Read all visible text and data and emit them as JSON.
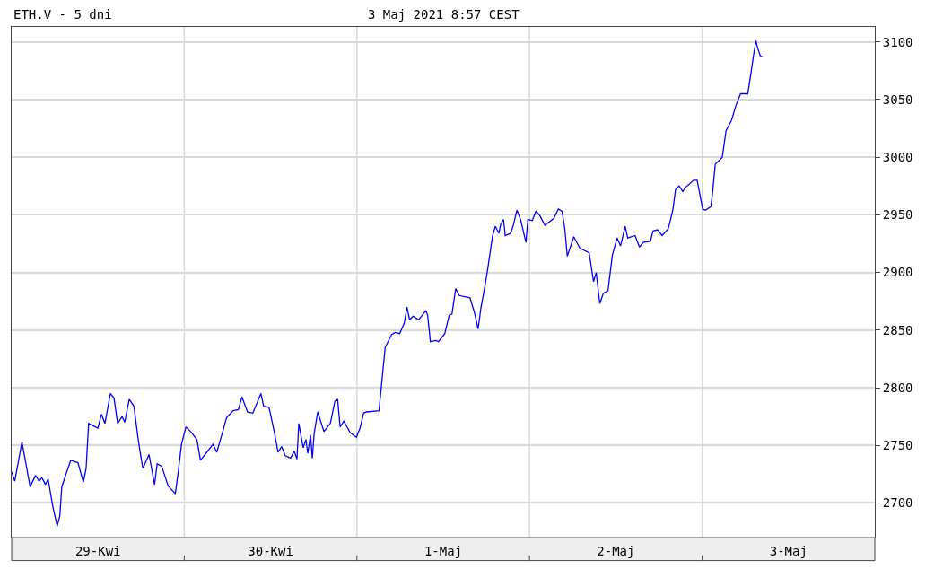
{
  "chart_data": {
    "type": "line",
    "title": "ETH.V - 5 dni",
    "subtitle": "3 Maj 2021 8:57 CEST",
    "x": [
      "2021-04-29T00:00",
      "2021-04-29T00:26",
      "2021-04-29T01:26",
      "2021-04-29T02:34",
      "2021-04-29T03:19",
      "2021-04-29T03:49",
      "2021-04-29T04:12",
      "2021-04-29T04:42",
      "2021-04-29T05:04",
      "2021-04-29T05:43",
      "2021-04-29T06:20",
      "2021-04-29T06:42",
      "2021-04-29T06:58",
      "2021-04-29T08:12",
      "2021-04-29T09:13",
      "2021-04-29T09:58",
      "2021-04-29T10:21",
      "2021-04-29T10:42",
      "2021-04-29T11:59",
      "2021-04-29T12:29",
      "2021-04-29T12:58",
      "2021-04-29T13:44",
      "2021-04-29T14:14",
      "2021-04-29T14:44",
      "2021-04-29T15:22",
      "2021-04-29T15:43",
      "2021-04-29T16:21",
      "2021-04-29T17:00",
      "2021-04-29T17:37",
      "2021-04-29T18:14",
      "2021-04-29T19:06",
      "2021-04-29T19:52",
      "2021-04-29T20:14",
      "2021-04-29T20:51",
      "2021-04-29T21:45",
      "2021-04-29T22:45",
      "2021-04-29T23:07",
      "2021-04-29T23:37",
      "2021-04-30T00:14",
      "2021-04-30T00:53",
      "2021-04-30T01:45",
      "2021-04-30T02:15",
      "2021-04-30T03:00",
      "2021-04-30T04:00",
      "2021-04-30T04:31",
      "2021-04-30T05:15",
      "2021-04-30T05:53",
      "2021-04-30T06:46",
      "2021-04-30T07:31",
      "2021-04-30T08:01",
      "2021-04-30T08:47",
      "2021-04-30T09:32",
      "2021-04-30T10:39",
      "2021-04-30T11:02",
      "2021-04-30T11:47",
      "2021-04-30T12:32",
      "2021-04-30T13:02",
      "2021-04-30T13:32",
      "2021-04-30T14:02",
      "2021-04-30T14:47",
      "2021-04-30T15:17",
      "2021-04-30T15:40",
      "2021-04-30T15:55",
      "2021-04-30T16:32",
      "2021-04-30T16:55",
      "2021-04-30T17:10",
      "2021-04-30T17:33",
      "2021-04-30T17:48",
      "2021-04-30T18:03",
      "2021-04-30T18:33",
      "2021-04-30T19:25",
      "2021-04-30T20:18",
      "2021-04-30T20:56",
      "2021-04-30T21:19",
      "2021-04-30T21:40",
      "2021-04-30T22:11",
      "2021-04-30T23:04",
      "2021-04-30T23:56",
      "2021-05-01T00:26",
      "2021-05-01T00:56",
      "2021-05-01T01:19",
      "2021-05-01T03:04",
      "2021-05-01T03:35",
      "2021-05-01T03:56",
      "2021-05-01T04:49",
      "2021-05-01T05:20",
      "2021-05-01T05:57",
      "2021-05-01T06:35",
      "2021-05-01T06:58",
      "2021-05-01T07:19",
      "2021-05-01T07:49",
      "2021-05-01T08:36",
      "2021-05-01T09:06",
      "2021-05-01T09:35",
      "2021-05-01T09:50",
      "2021-05-01T10:13",
      "2021-05-01T10:58",
      "2021-05-01T11:21",
      "2021-05-01T12:13",
      "2021-05-01T12:50",
      "2021-05-01T13:13",
      "2021-05-01T13:44",
      "2021-05-01T14:14",
      "2021-05-01T15:43",
      "2021-05-01T16:21",
      "2021-05-01T16:51",
      "2021-05-01T17:14",
      "2021-05-01T17:51",
      "2021-05-01T18:14",
      "2021-05-01T18:52",
      "2021-05-01T19:15",
      "2021-05-01T19:44",
      "2021-05-01T20:00",
      "2021-05-01T20:23",
      "2021-05-01T20:37",
      "2021-05-01T21:22",
      "2021-05-01T21:45",
      "2021-05-01T22:15",
      "2021-05-01T22:45",
      "2021-05-01T23:30",
      "2021-05-01T23:46",
      "2021-05-02T00:23",
      "2021-05-02T00:53",
      "2021-05-02T01:22",
      "2021-05-02T02:08",
      "2021-05-02T03:23",
      "2021-05-02T04:00",
      "2021-05-02T04:31",
      "2021-05-02T04:54",
      "2021-05-02T05:15",
      "2021-05-02T06:09",
      "2021-05-02T07:00",
      "2021-05-02T08:17",
      "2021-05-02T08:54",
      "2021-05-02T09:16",
      "2021-05-02T09:46",
      "2021-05-02T10:16",
      "2021-05-02T10:54",
      "2021-05-02T11:31",
      "2021-05-02T12:10",
      "2021-05-02T12:39",
      "2021-05-02T13:18",
      "2021-05-02T13:39",
      "2021-05-02T14:40",
      "2021-05-02T15:17",
      "2021-05-02T15:48",
      "2021-05-02T16:48",
      "2021-05-02T17:10",
      "2021-05-02T17:48",
      "2021-05-02T18:26",
      "2021-05-02T19:18",
      "2021-05-02T19:55",
      "2021-05-02T20:18",
      "2021-05-02T20:48",
      "2021-05-02T21:19",
      "2021-05-02T21:33",
      "2021-05-02T22:48",
      "2021-05-02T23:18",
      "2021-05-03T00:04",
      "2021-05-03T00:26",
      "2021-05-03T01:12",
      "2021-05-03T01:26",
      "2021-05-03T01:49",
      "2021-05-03T02:11",
      "2021-05-03T02:48",
      "2021-05-03T03:19",
      "2021-05-03T04:05",
      "2021-05-03T04:42",
      "2021-05-03T05:20",
      "2021-05-03T06:20",
      "2021-05-03T06:50",
      "2021-05-03T07:05",
      "2021-05-03T07:28",
      "2021-05-03T07:42",
      "2021-05-03T08:05",
      "2021-05-03T08:20"
    ],
    "series": [
      {
        "color": "#0000ff",
        "values": [
          2727,
          2719,
          2753,
          2714,
          2724,
          2719,
          2722,
          2716,
          2721,
          2697,
          2680,
          2689,
          2714,
          2737,
          2735,
          2718,
          2730,
          2769,
          2765,
          2777,
          2769,
          2795,
          2791,
          2769,
          2775,
          2770,
          2790,
          2784,
          2754,
          2730,
          2742,
          2716,
          2734,
          2732,
          2715,
          2708,
          2725,
          2751,
          2766,
          2762,
          2755,
          2737,
          2743,
          2751,
          2744,
          2760,
          2774,
          2780,
          2781,
          2792,
          2779,
          2778,
          2795,
          2784,
          2783,
          2761,
          2744,
          2749,
          2741,
          2739,
          2745,
          2738,
          2769,
          2748,
          2755,
          2743,
          2759,
          2739,
          2760,
          2779,
          2762,
          2769,
          2788,
          2790,
          2766,
          2771,
          2761,
          2757,
          2765,
          2778,
          2779,
          2780,
          2813,
          2835,
          2846,
          2848,
          2847,
          2856,
          2870,
          2859,
          2862,
          2859,
          2863,
          2867,
          2863,
          2840,
          2841,
          2840,
          2847,
          2863,
          2864,
          2886,
          2880,
          2878,
          2865,
          2851,
          2869,
          2890,
          2905,
          2932,
          2940,
          2934,
          2942,
          2946,
          2932,
          2934,
          2941,
          2954,
          2946,
          2926,
          2946,
          2945,
          2953,
          2950,
          2941,
          2947,
          2955,
          2953,
          2938,
          2914,
          2931,
          2921,
          2917,
          2892,
          2900,
          2873,
          2882,
          2884,
          2915,
          2930,
          2923,
          2940,
          2930,
          2932,
          2922,
          2926,
          2927,
          2936,
          2937,
          2932,
          2938,
          2954,
          2972,
          2975,
          2970,
          2973,
          2980,
          2980,
          2955,
          2954,
          2957,
          2968,
          2994,
          2996,
          3000,
          3023,
          3032,
          3045,
          3055,
          3055,
          3075,
          3086,
          3101,
          3095,
          3088,
          3087
        ]
      }
    ],
    "xlim": [
      "2021-04-29T00:00",
      "2021-05-04T00:00"
    ],
    "xticks": [
      {
        "value": "2021-04-29T12:00",
        "label": "29-Kwi"
      },
      {
        "value": "2021-04-30T00:00",
        "label": null
      },
      {
        "value": "2021-04-30T12:00",
        "label": "30-Kwi"
      },
      {
        "value": "2021-05-01T00:00",
        "label": null
      },
      {
        "value": "2021-05-01T12:00",
        "label": "1-Maj"
      },
      {
        "value": "2021-05-02T00:00",
        "label": null
      },
      {
        "value": "2021-05-02T12:00",
        "label": "2-Maj"
      },
      {
        "value": "2021-05-03T00:00",
        "label": null
      },
      {
        "value": "2021-05-03T12:00",
        "label": "3-Maj"
      }
    ],
    "ylim": [
      2670,
      3113
    ],
    "yticks": [
      2700,
      2750,
      2800,
      2850,
      2900,
      2950,
      3000,
      3050,
      3100
    ],
    "grid": true,
    "legend": false
  }
}
